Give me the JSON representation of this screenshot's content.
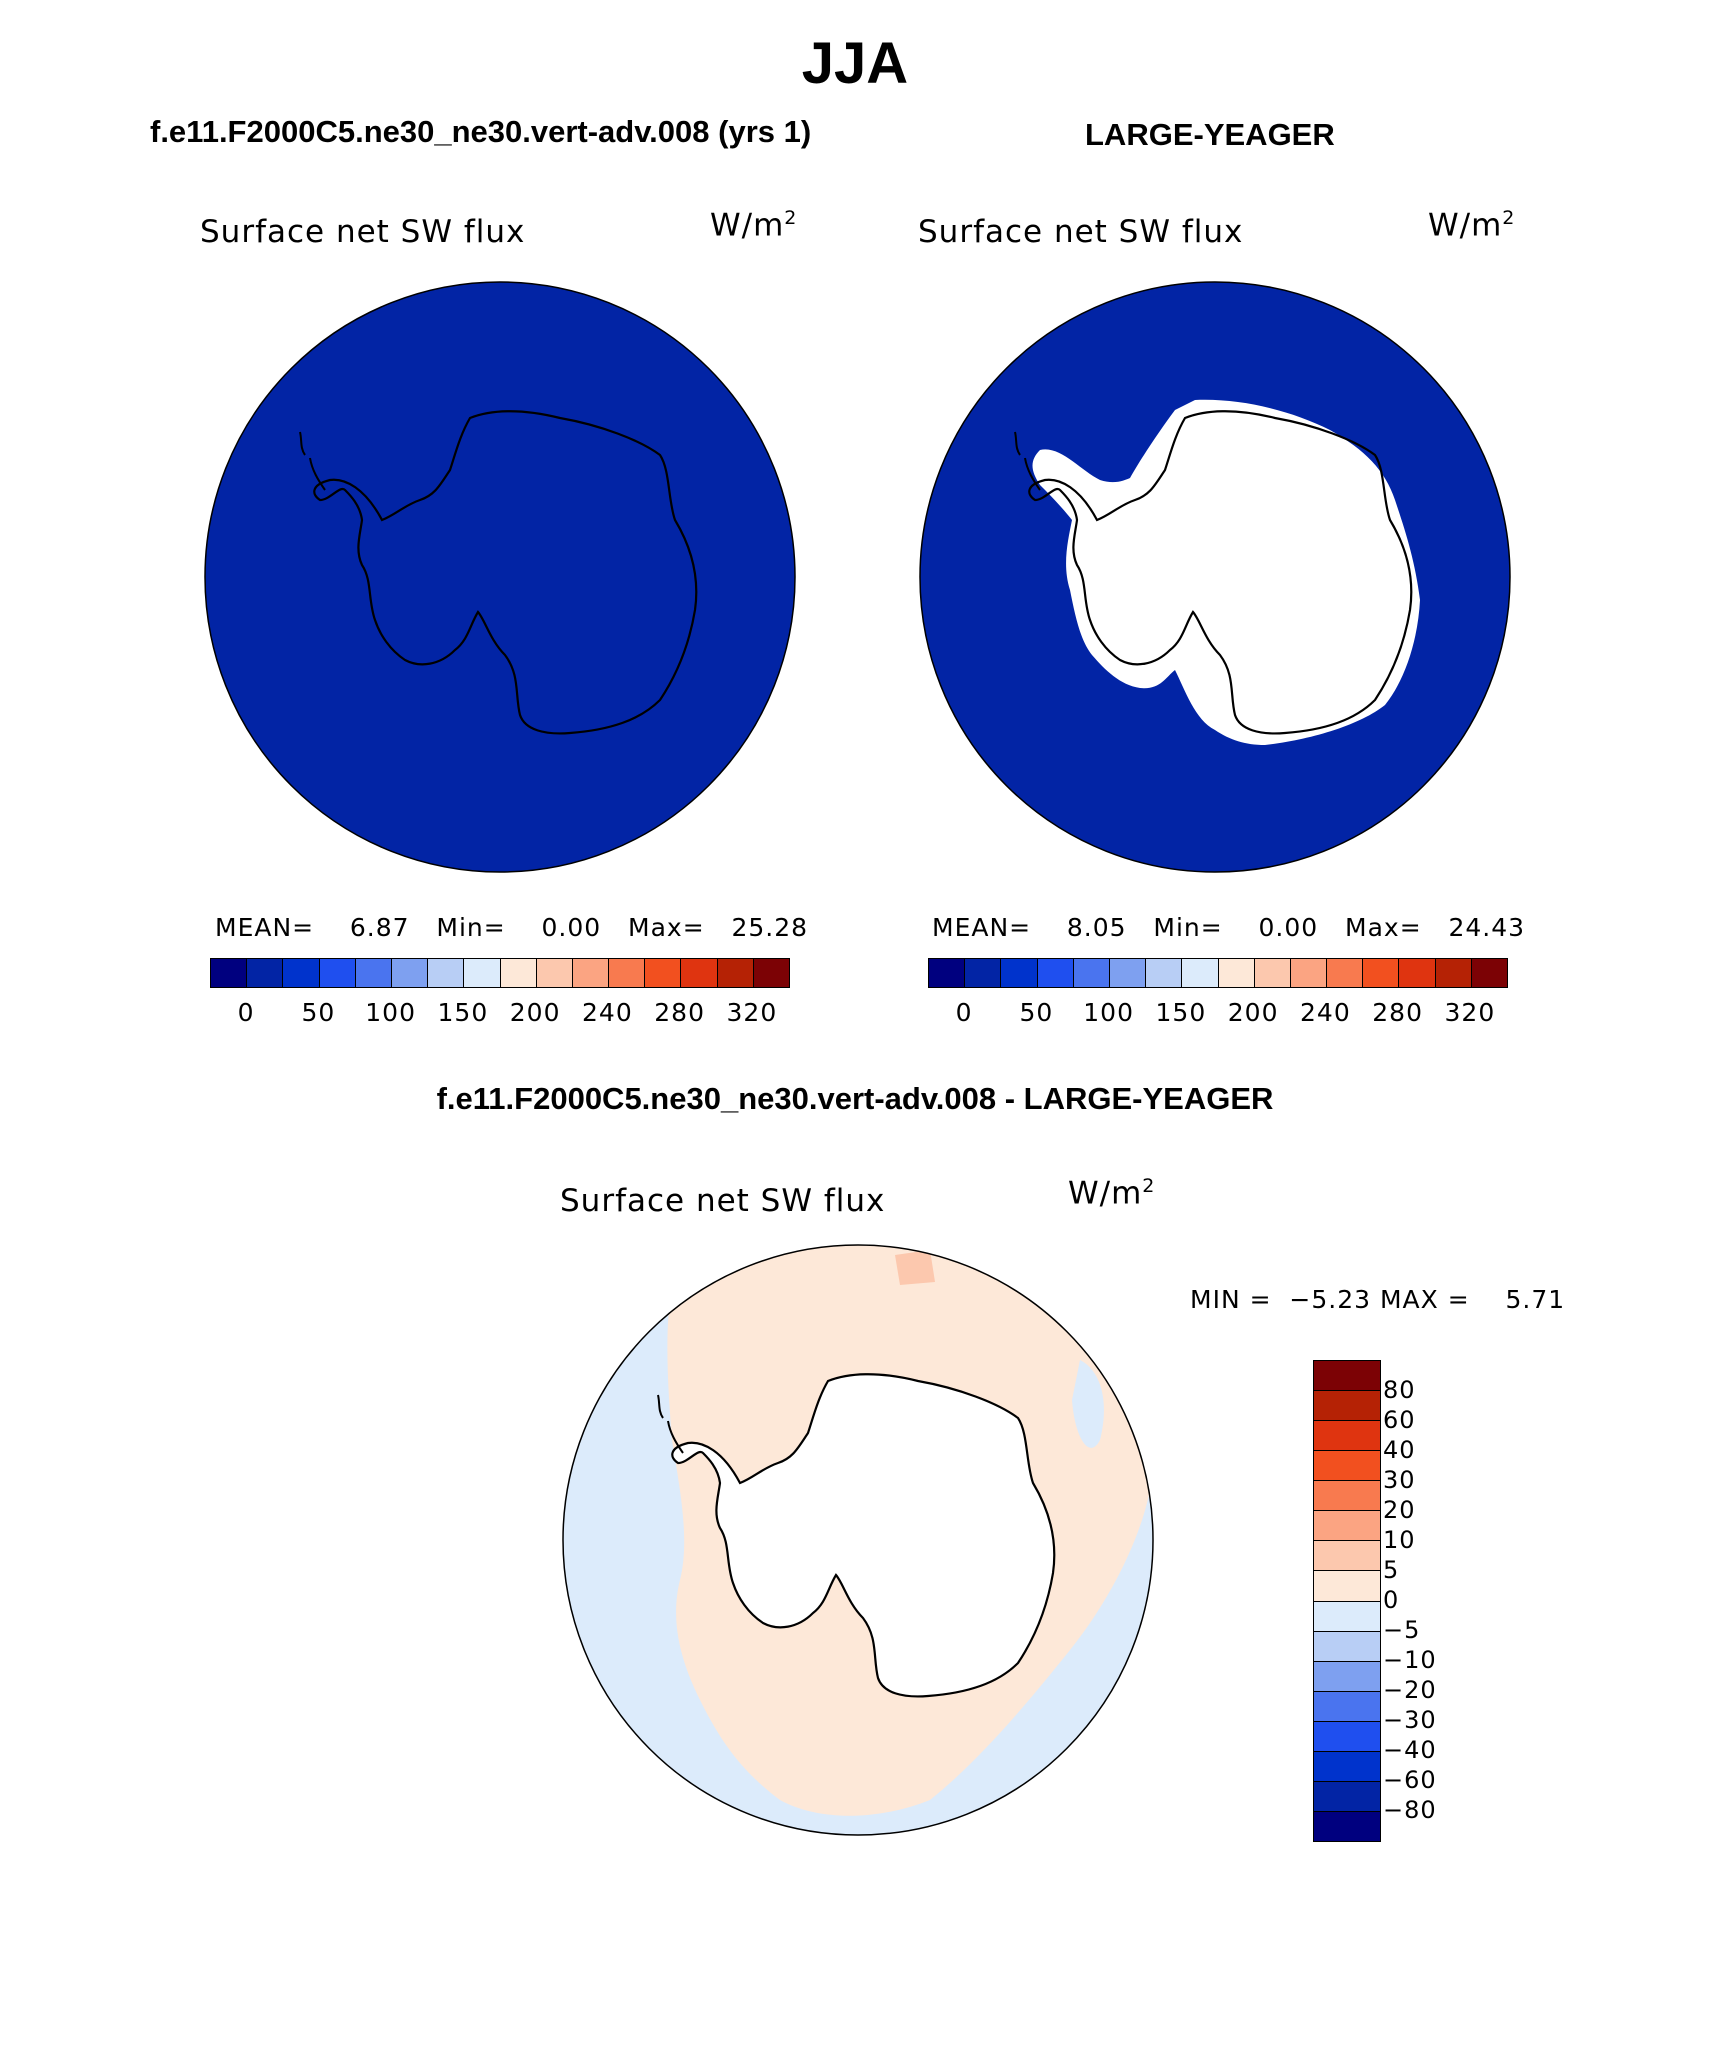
{
  "figure": {
    "season": "JJA",
    "panels": [
      {
        "case_title": "f.e11.F2000C5.ne30_ne30.vert-adv.008 (yrs 1)",
        "label": "Surface net SW flux",
        "units_base": "W/m",
        "units_exp": "2",
        "stats": "MEAN=    6.87   Min=    0.00   Max=   25.28"
      },
      {
        "case_title": "LARGE-YEAGER",
        "label": "Surface net SW flux",
        "units_base": "W/m",
        "units_exp": "2",
        "stats": "MEAN=    8.05   Min=    0.00   Max=   24.43"
      }
    ],
    "diff": {
      "title": "f.e11.F2000C5.ne30_ne30.vert-adv.008 - LARGE-YEAGER",
      "label": "Surface net SW flux",
      "units_base": "W/m",
      "units_exp": "2",
      "minmax": "MIN =  −5.23 MAX =    5.71"
    }
  },
  "colorbar_main": {
    "colors": [
      "#00007f",
      "#0224a5",
      "#0033cc",
      "#1f4fef",
      "#4a74ef",
      "#7ea0f0",
      "#b8cef5",
      "#dcebfb",
      "#fde8d8",
      "#fcc8ae",
      "#fba482",
      "#f87a4f",
      "#f2501f",
      "#df3410",
      "#b52205",
      "#7c0205"
    ],
    "ticks": [
      "0",
      "50",
      "100",
      "150",
      "200",
      "240",
      "280",
      "320"
    ]
  },
  "colorbar_diff": {
    "colors": [
      "#7c0205",
      "#b52205",
      "#df3410",
      "#f2501f",
      "#f87a4f",
      "#fba482",
      "#fcc8ae",
      "#fde8d8",
      "#dcebfb",
      "#b8cef5",
      "#7ea0f0",
      "#4a74ef",
      "#1f4fef",
      "#0033cc",
      "#0224a5",
      "#00007f"
    ],
    "ticks": [
      "80",
      "60",
      "40",
      "30",
      "20",
      "10",
      "5",
      "0",
      "−5",
      "−10",
      "−20",
      "−30",
      "−40",
      "−60",
      "−80"
    ]
  },
  "map_colors": {
    "ocean_blue": "#0224a5",
    "land": "#ffffff",
    "diff_positive": "#fde8d8",
    "diff_negative": "#dcebfb",
    "diff_moderate": "#fcc8ae"
  }
}
